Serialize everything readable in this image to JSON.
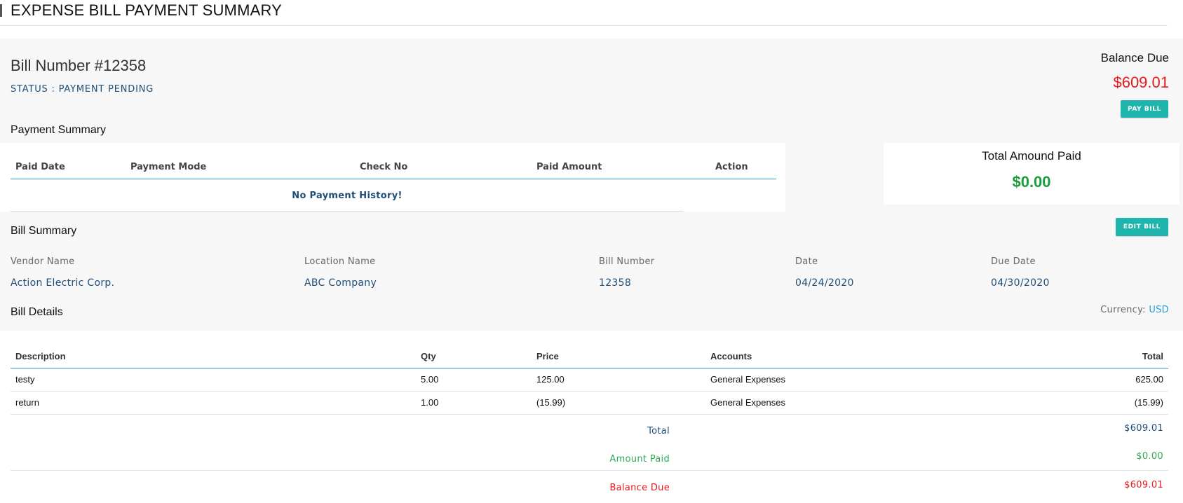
{
  "header": {
    "title": "EXPENSE BILL PAYMENT SUMMARY"
  },
  "bill": {
    "number_title": "Bill Number #12358",
    "status": "STATUS : PAYMENT PENDING",
    "balance_label": "Balance Due",
    "balance_amount": "$609.01",
    "pay_button": "PAY BILL"
  },
  "payment_summary": {
    "title": "Payment Summary",
    "columns": [
      "Paid Date",
      "Payment Mode",
      "Check No",
      "Paid Amount",
      "Action"
    ],
    "empty_message": "No Payment History!"
  },
  "total_paid": {
    "label": "Total Amound Paid",
    "amount": "$0.00"
  },
  "bill_summary": {
    "title": "Bill Summary",
    "edit_button": "EDIT BILL",
    "fields": [
      {
        "label": "Vendor Name",
        "value": "Action Electric Corp."
      },
      {
        "label": "Location Name",
        "value": "ABC Company"
      },
      {
        "label": "Bill Number",
        "value": "12358"
      },
      {
        "label": "Date",
        "value": "04/24/2020"
      },
      {
        "label": "Due Date",
        "value": "04/30/2020"
      }
    ]
  },
  "bill_details": {
    "title": "Bill Details",
    "currency_label": "Currency:",
    "currency_value": "USD",
    "columns": [
      "Description",
      "Qty",
      "Price",
      "Accounts",
      "Total"
    ],
    "rows": [
      {
        "description": "testy",
        "qty": "5.00",
        "price": "125.00",
        "account": "General Expenses",
        "total": "625.00"
      },
      {
        "description": "return",
        "qty": "1.00",
        "price": "(15.99)",
        "account": "General Expenses",
        "total": "(15.99)"
      }
    ],
    "summary": {
      "total_label": "Total",
      "total_value": "$609.01",
      "paid_label": "Amount Paid",
      "paid_value": "$0.00",
      "balance_label": "Balance Due",
      "balance_value": "$609.01"
    }
  },
  "colors": {
    "accent_teal": "#1fb5ac",
    "link_blue": "#1f4e79",
    "rule_blue": "#2a9bd7",
    "due_red": "#e8191c",
    "paid_green": "#1a9b3c"
  }
}
